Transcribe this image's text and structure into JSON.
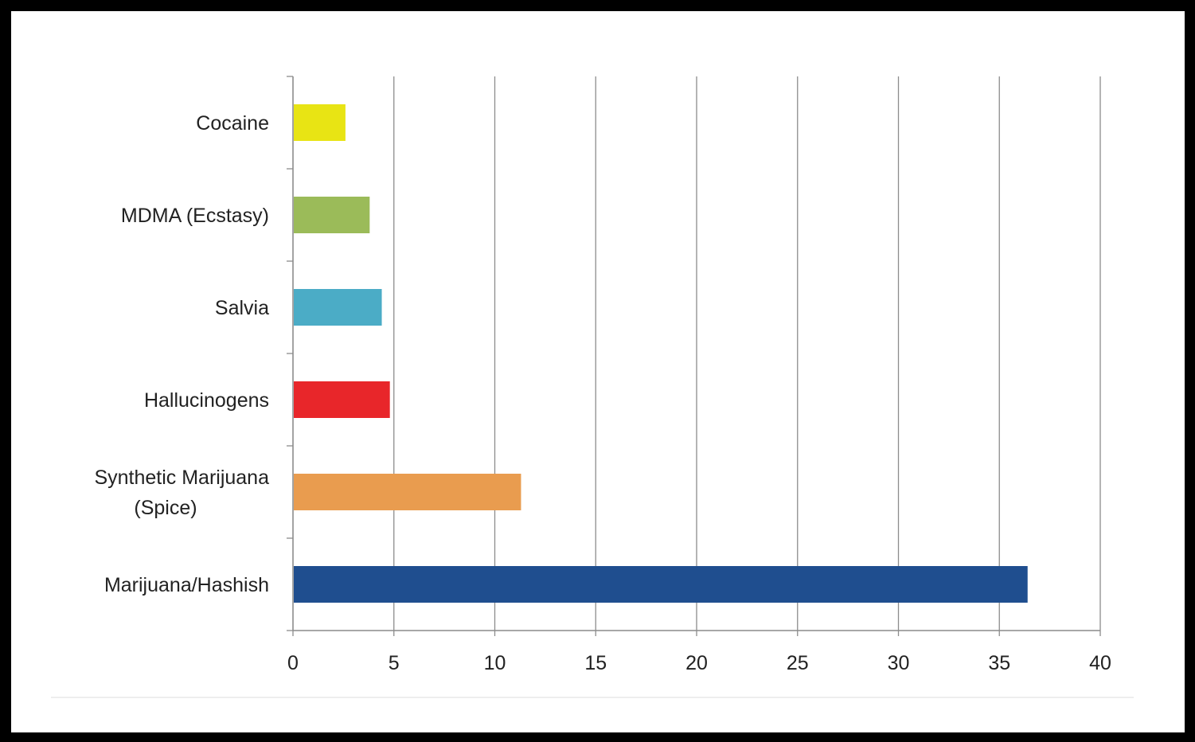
{
  "colors": {
    "background": "#ffffff",
    "frame": "#000000",
    "gridline": "#8c8c8c",
    "axis": "#8c8c8c"
  },
  "chart_data": {
    "type": "bar",
    "orientation": "horizontal",
    "categories": [
      "Cocaine",
      "MDMA (Ecstasy)",
      "Salvia",
      "Hallucinogens",
      "Synthetic Marijuana (Spice)",
      "Marijuana/Hashish"
    ],
    "category_lines": [
      [
        "Cocaine"
      ],
      [
        "MDMA (Ecstasy)"
      ],
      [
        "Salvia"
      ],
      [
        "Hallucinogens"
      ],
      [
        "Synthetic Marijuana",
        "(Spice)"
      ],
      [
        "Marijuana/Hashish"
      ]
    ],
    "values": [
      2.6,
      3.8,
      4.4,
      4.8,
      11.3,
      36.4
    ],
    "colors": [
      "#e8e414",
      "#9bbb59",
      "#4bacc6",
      "#e8262a",
      "#e99c4f",
      "#1f4e8f"
    ],
    "xlim": [
      0,
      40
    ],
    "xticks": [
      "0",
      "5",
      "10",
      "15",
      "20",
      "25",
      "30",
      "35",
      "40"
    ],
    "grid": true,
    "legend": "none"
  }
}
